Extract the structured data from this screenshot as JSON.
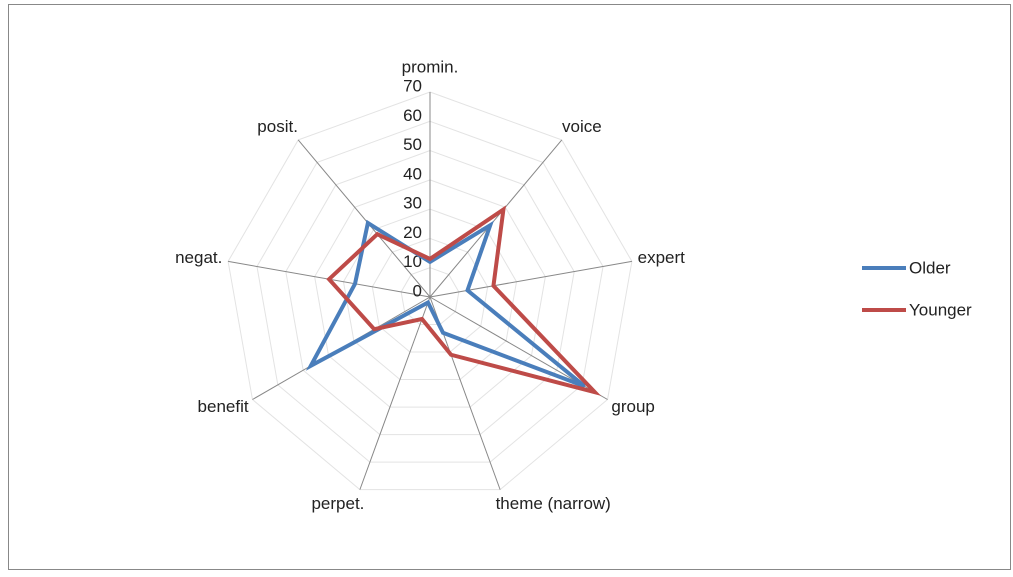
{
  "chart_data": {
    "type": "radar",
    "categories": [
      "promin.",
      "voice",
      "expert",
      "group",
      "theme (narrow)",
      "perpet.",
      "benefit",
      "negat.",
      "posit."
    ],
    "series": [
      {
        "name": "Older",
        "color": "#4a7ebb",
        "values": [
          12,
          32,
          13,
          61,
          13,
          2,
          47,
          26,
          33
        ]
      },
      {
        "name": "Younger",
        "color": "#be4b48",
        "values": [
          13,
          39,
          22,
          65,
          21,
          8,
          22,
          35,
          28
        ]
      }
    ],
    "ylim": [
      0,
      70
    ],
    "yticks": [
      0,
      10,
      20,
      30,
      40,
      50,
      60,
      70
    ],
    "grid": true,
    "legend": "right"
  }
}
